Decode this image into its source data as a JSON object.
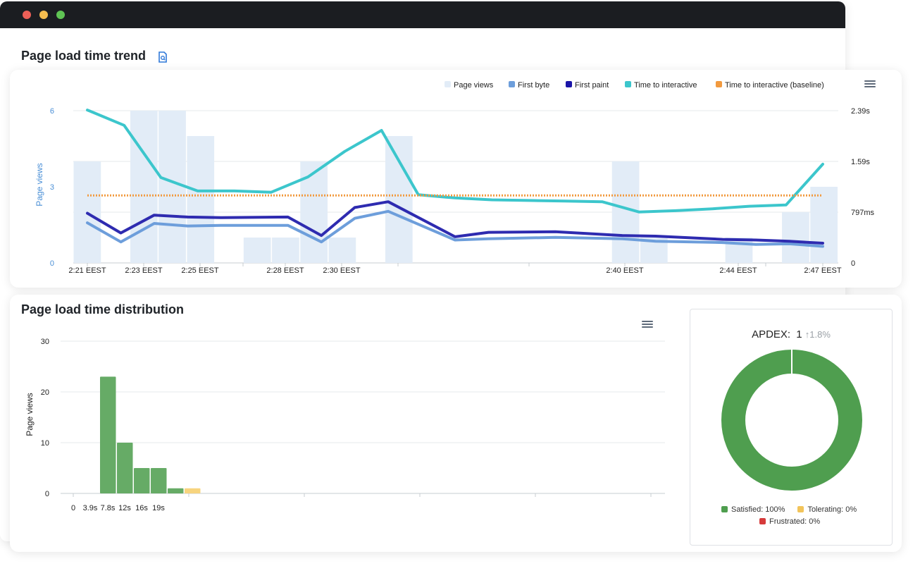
{
  "window": {
    "controls": [
      "close",
      "minimize",
      "maximize"
    ],
    "colors": {
      "close": "#ed5f57",
      "minimize": "#f5bd4f",
      "maximize": "#5fc454"
    }
  },
  "trend": {
    "title": "Page load time trend",
    "report_icon": "report-icon",
    "menu_icon": "hamburger-menu-icon",
    "chart_data": {
      "type": "bar+line",
      "x_ticks": [
        "2:21 EEST",
        "2:23 EEST",
        "2:25 EEST",
        "2:28 EEST",
        "2:30 EEST",
        "2:40 EEST",
        "2:44 EEST",
        "2:47 EEST"
      ],
      "ylabel_left": "Page views",
      "y_left_ticks": [
        "0",
        "3",
        "6"
      ],
      "ylim_left": [
        0,
        6
      ],
      "y_right_ticks": [
        "0",
        "797ms",
        "1.59s",
        "2.39s"
      ],
      "ylim_right_s": [
        0,
        2.39
      ],
      "legend": [
        {
          "label": "Page views",
          "color": "#e2ecf7"
        },
        {
          "label": "First byte",
          "color": "#6d9edb"
        },
        {
          "label": "First paint",
          "color": "#1a14a8"
        },
        {
          "label": "Time to interactive",
          "color": "#3cc6cc"
        },
        {
          "label": "Time to interactive (baseline)",
          "color": "#f29a3f"
        }
      ],
      "legend_position": "top-right",
      "page_view_bars": [
        4,
        0,
        6,
        6,
        5,
        0,
        1,
        1,
        4,
        1,
        0,
        5,
        0,
        0,
        0,
        0,
        0,
        0,
        0,
        4,
        1,
        0,
        0,
        1,
        0,
        2,
        3
      ],
      "series": [
        {
          "name": "Time to interactive",
          "color": "#3cc6cc",
          "values_s": [
            2.4,
            2.16,
            1.34,
            1.13,
            1.13,
            1.11,
            1.35,
            1.75,
            2.08,
            1.07,
            1.02,
            0.99,
            0.98,
            0.97,
            0.96,
            0.8,
            0.82,
            0.85,
            0.89,
            0.91,
            1.55
          ]
        },
        {
          "name": "First paint",
          "color": "#2e2bb0",
          "values_s": [
            0.78,
            0.47,
            0.75,
            0.72,
            0.71,
            0.72,
            0.43,
            0.87,
            0.96,
            0.41,
            0.48,
            0.49,
            0.43,
            0.42,
            0.37,
            0.36,
            0.34,
            0.31
          ],
          "x_index": [
            0,
            1,
            2,
            3,
            4,
            6,
            7,
            8,
            9,
            11,
            12,
            14,
            16,
            17,
            19,
            20,
            21,
            22
          ]
        },
        {
          "name": "First byte",
          "color": "#6d9edb",
          "values_s": [
            0.63,
            0.33,
            0.62,
            0.58,
            0.59,
            0.59,
            0.33,
            0.7,
            0.81,
            0.36,
            0.38,
            0.4,
            0.38,
            0.34,
            0.32,
            0.29,
            0.3,
            0.26
          ],
          "x_index": [
            0,
            1,
            2,
            3,
            4,
            6,
            7,
            8,
            9,
            11,
            12,
            14,
            16,
            17,
            19,
            20,
            21,
            22
          ]
        },
        {
          "name": "Time to interactive (baseline)",
          "color": "#f29a3f",
          "dashed": true,
          "values_s": [
            1.06
          ]
        }
      ]
    }
  },
  "distribution": {
    "title": "Page load time distribution",
    "menu_icon": "hamburger-menu-icon",
    "chart_data": {
      "type": "bar",
      "ylabel": "Page views",
      "y_ticks": [
        "0",
        "10",
        "20",
        "30"
      ],
      "ylim": [
        0,
        30
      ],
      "x_ticks": [
        "0",
        "3.9s",
        "7.8s",
        "12s",
        "16s",
        "19s"
      ],
      "bins": [
        {
          "value": 23,
          "color": "#66ab66"
        },
        {
          "value": 10,
          "color": "#66ab66"
        },
        {
          "value": 5,
          "color": "#66ab66"
        },
        {
          "value": 5,
          "color": "#66ab66"
        },
        {
          "value": 1,
          "color": "#66ab66"
        },
        {
          "value": 1,
          "color": "#f7d47e"
        }
      ]
    }
  },
  "apdex": {
    "label": "APDEX:",
    "value": "1",
    "change": "↑1.8%",
    "chart_data": {
      "type": "pie",
      "slices": [
        {
          "name": "Satisfied",
          "value": 100,
          "color": "#4f9e4f"
        },
        {
          "name": "Tolerating",
          "value": 0,
          "color": "#f2c45a"
        },
        {
          "name": "Frustrated",
          "value": 0,
          "color": "#d63b3b"
        }
      ]
    },
    "legend": [
      {
        "label": "Satisfied: 100%",
        "color": "#4f9e4f"
      },
      {
        "label": "Tolerating: 0%",
        "color": "#f2c45a"
      },
      {
        "label": "Frustrated: 0%",
        "color": "#d63b3b"
      }
    ]
  }
}
